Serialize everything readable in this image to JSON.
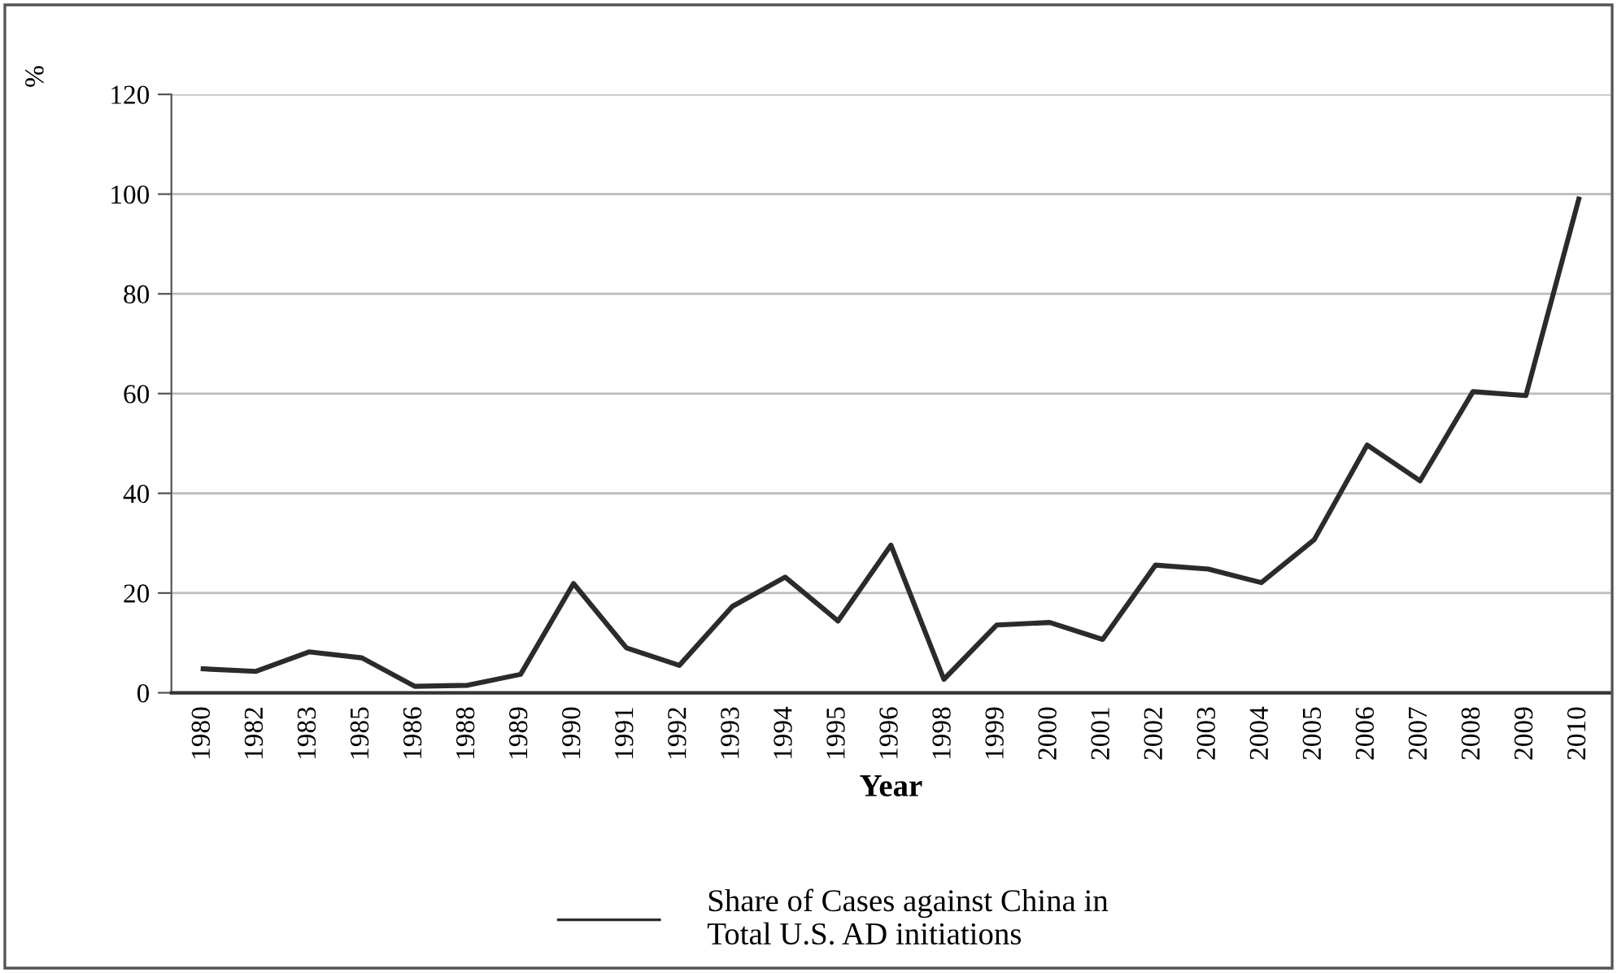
{
  "chart_data": {
    "type": "line",
    "ylabel": "%",
    "xlabel": "Year",
    "categories": [
      "1980",
      "1982",
      "1983",
      "1985",
      "1986",
      "1988",
      "1989",
      "1990",
      "1991",
      "1992",
      "1993",
      "1994",
      "1995",
      "1996",
      "1998",
      "1999",
      "2000",
      "2001",
      "2002",
      "2003",
      "2004",
      "2005",
      "2006",
      "2007",
      "2008",
      "2009",
      "2010"
    ],
    "series": [
      {
        "name": "Share of Cases against China in\nTotal U.S. AD initiations",
        "color": "#2b2b2b",
        "values": [
          4.8,
          4.3,
          8.2,
          7.0,
          1.3,
          1.5,
          3.7,
          21.9,
          9.0,
          5.5,
          17.3,
          23.2,
          14.4,
          29.6,
          2.7,
          13.6,
          14.1,
          10.7,
          25.6,
          24.8,
          22.1,
          30.7,
          49.7,
          42.5,
          60.4,
          59.6,
          99
        ]
      }
    ],
    "ylim": [
      0,
      120
    ],
    "yticks": [
      0,
      20,
      40,
      60,
      80,
      100,
      120
    ],
    "grid": "y",
    "legend": "bottom",
    "marker": "none",
    "line_style": "solid"
  }
}
